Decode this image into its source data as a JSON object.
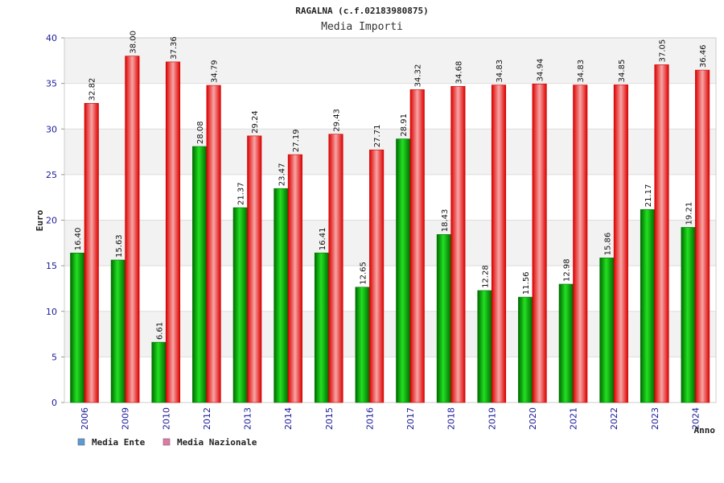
{
  "chart_data": {
    "type": "bar",
    "title": "RAGALNA (c.f.02183980875)",
    "subtitle": "Media Importi",
    "xlabel": "Anno",
    "ylabel": "Euro",
    "ylim": [
      0,
      40
    ],
    "yticks": [
      "0",
      "5",
      "10",
      "15",
      "20",
      "25",
      "30",
      "35",
      "40"
    ],
    "grid": true,
    "legend_position": "bottom-left",
    "categories": [
      "2006",
      "2009",
      "2010",
      "2012",
      "2013",
      "2014",
      "2015",
      "2016",
      "2017",
      "2018",
      "2019",
      "2020",
      "2021",
      "2022",
      "2023",
      "2024"
    ],
    "series": [
      {
        "name": "Media Ente",
        "values": [
          16.4,
          15.63,
          6.61,
          28.08,
          21.37,
          23.47,
          16.41,
          12.65,
          28.91,
          18.43,
          12.28,
          11.56,
          12.98,
          15.86,
          21.17,
          19.21
        ],
        "labels": [
          "16.40",
          "15.63",
          "6.61",
          "28.08",
          "21.37",
          "23.47",
          "16.41",
          "12.65",
          "28.91",
          "18.43",
          "12.28",
          "11.56",
          "12.98",
          "15.86",
          "21.17",
          "19.21"
        ],
        "color": "#00b000",
        "legend_color": "#5b9bd5"
      },
      {
        "name": "Media Nazionale",
        "values": [
          32.82,
          38.0,
          37.36,
          34.79,
          29.24,
          27.19,
          29.43,
          27.71,
          34.32,
          34.68,
          34.83,
          34.94,
          34.83,
          34.85,
          37.05,
          36.46
        ],
        "labels": [
          "32.82",
          "38.00",
          "37.36",
          "34.79",
          "29.24",
          "27.19",
          "29.43",
          "27.71",
          "34.32",
          "34.68",
          "34.83",
          "34.94",
          "34.83",
          "34.85",
          "37.05",
          "36.46"
        ],
        "color": "#ee1111",
        "legend_color": "#e377a8"
      }
    ]
  }
}
